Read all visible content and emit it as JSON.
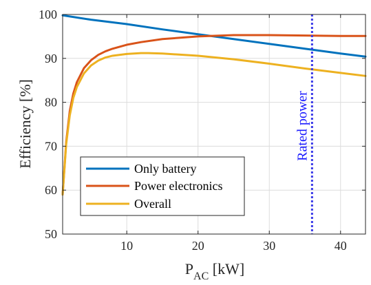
{
  "chart_data": {
    "type": "line",
    "xlabel_main": "P",
    "xlabel_sub": "AC",
    "xlabel_unit": " [kW]",
    "ylabel": "Efficiency [%]",
    "xlim": [
      1,
      43.5
    ],
    "ylim": [
      50,
      100
    ],
    "xticks": [
      10,
      20,
      30,
      40
    ],
    "yticks": [
      50,
      60,
      70,
      80,
      90,
      100
    ],
    "grid": true,
    "legend_position": "bottom-left",
    "series": [
      {
        "name": "Only battery",
        "color": "#0072BD",
        "x": [
          1,
          5,
          10,
          15,
          20,
          25,
          30,
          35,
          40,
          43.5
        ],
        "y": [
          99.8,
          98.8,
          97.8,
          96.6,
          95.5,
          94.4,
          93.3,
          92.2,
          91.1,
          90.4
        ]
      },
      {
        "name": "Power electronics",
        "color": "#D95319",
        "x": [
          1,
          1.5,
          2,
          2.5,
          3,
          4,
          5,
          6,
          7,
          8,
          10,
          12,
          15,
          20,
          25,
          30,
          35,
          40,
          43.5
        ],
        "y": [
          59,
          71,
          78,
          82,
          84.6,
          87.8,
          89.6,
          90.8,
          91.6,
          92.2,
          93.1,
          93.7,
          94.4,
          95.0,
          95.3,
          95.3,
          95.2,
          95.1,
          95.1
        ]
      },
      {
        "name": "Overall",
        "color": "#EDB120",
        "x": [
          1,
          1.5,
          2,
          2.5,
          3,
          4,
          5,
          6,
          7,
          8,
          10,
          12,
          13,
          15,
          20,
          25,
          30,
          35,
          40,
          43.5
        ],
        "y": [
          59,
          70.5,
          77,
          81,
          83.5,
          86.6,
          88.4,
          89.5,
          90.2,
          90.6,
          91.0,
          91.2,
          91.2,
          91.1,
          90.6,
          89.8,
          88.8,
          87.7,
          86.7,
          86.0
        ]
      }
    ],
    "reference_line": {
      "x": 36,
      "label": "Rated power",
      "color": "#3A3AE8"
    }
  }
}
